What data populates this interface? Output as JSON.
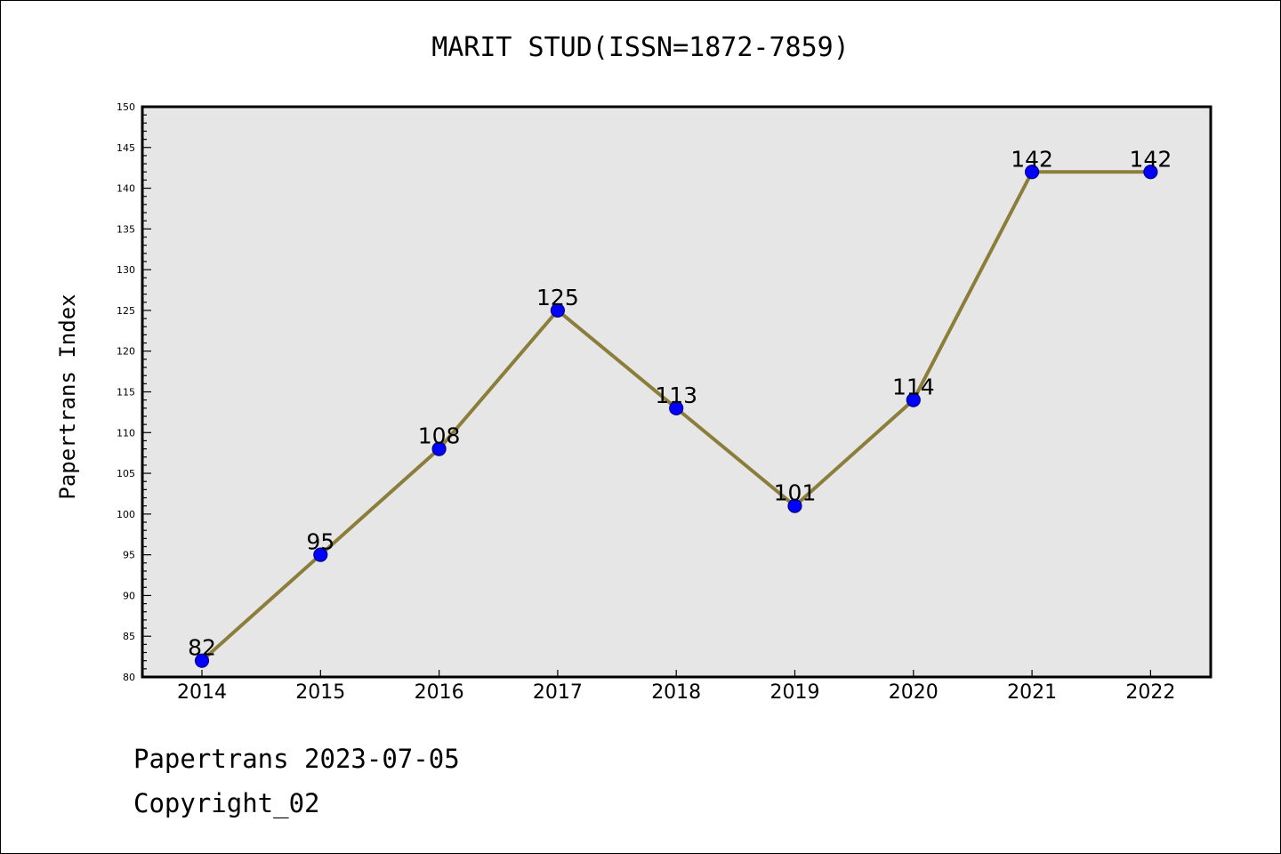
{
  "chart_data": {
    "type": "line",
    "title": "MARIT STUD(ISSN=1872-7859)",
    "xlabel": "",
    "ylabel": "Papertrans Index",
    "categories": [
      "2014",
      "2015",
      "2016",
      "2017",
      "2018",
      "2019",
      "2020",
      "2021",
      "2022"
    ],
    "values": [
      82,
      95,
      108,
      125,
      113,
      101,
      114,
      142,
      142
    ],
    "ylim": [
      80,
      150
    ],
    "yticks": [
      80,
      85,
      90,
      95,
      100,
      105,
      110,
      115,
      120,
      125,
      130,
      135,
      140,
      145,
      150
    ],
    "grid": false,
    "legend": "none",
    "colors": {
      "line": "#8B7D3A",
      "marker": "#0000FF",
      "marker_edge": "#000080",
      "plot_background": "#E6E6E6"
    }
  },
  "footer": {
    "date_line": "Papertrans 2023-07-05",
    "copyright_line": "Copyright_02"
  }
}
